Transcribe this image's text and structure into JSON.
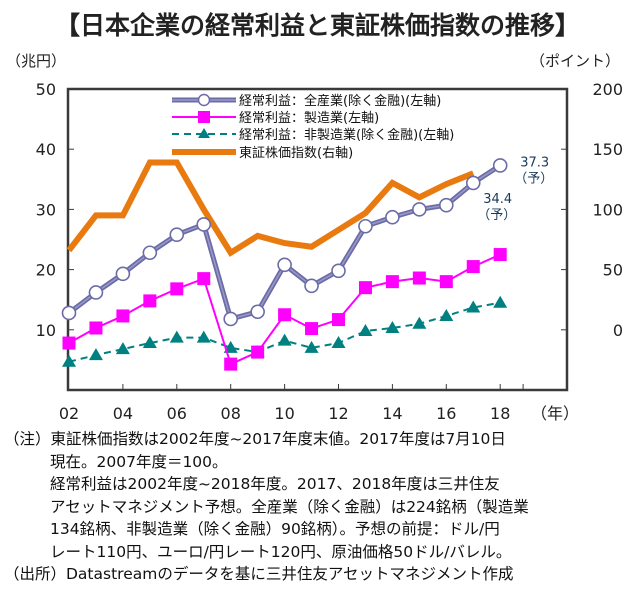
{
  "title": "【日本企業の経常利益と東証株価指数の推移】",
  "left_unit": "（兆円）",
  "right_unit": "（ポイント）",
  "x_unit": "（年）",
  "chart_data": {
    "type": "line",
    "title": "日本企業の経常利益と東証株価指数の推移",
    "xlabel": "（年）",
    "ylabel_left": "（兆円）",
    "ylabel_right": "（ポイント）",
    "x": [
      2002,
      2003,
      2004,
      2005,
      2006,
      2007,
      2008,
      2009,
      2010,
      2011,
      2012,
      2013,
      2014,
      2015,
      2016,
      2017,
      2018
    ],
    "x_tick_labels": [
      "02",
      "04",
      "06",
      "08",
      "10",
      "12",
      "14",
      "16",
      "18"
    ],
    "x_tick_years": [
      2002,
      2004,
      2006,
      2008,
      2010,
      2012,
      2014,
      2016,
      2018
    ],
    "ylim_left": [
      0,
      50
    ],
    "yticks_left": [
      10,
      20,
      30,
      40,
      50
    ],
    "ylim_right": [
      -50,
      200
    ],
    "yticks_right": [
      0,
      50,
      100,
      150,
      200
    ],
    "grid": false,
    "legend_position": "top-center",
    "series": [
      {
        "name": "経常利益：全産業(除く金融)(左軸)",
        "axis": "left",
        "color": "#6b6ba8",
        "marker": "circle-open",
        "style": "thick",
        "values": [
          12.8,
          16.2,
          19.3,
          22.8,
          25.8,
          27.5,
          11.8,
          13.0,
          20.8,
          17.3,
          19.8,
          27.2,
          28.7,
          30.0,
          30.7,
          34.4,
          37.3
        ]
      },
      {
        "name": "経常利益：製造業(左軸)",
        "axis": "left",
        "color": "#ff00ff",
        "marker": "square",
        "style": "solid",
        "values": [
          7.8,
          10.3,
          12.3,
          14.8,
          16.8,
          18.5,
          4.3,
          6.3,
          12.5,
          10.2,
          11.7,
          17.0,
          18.0,
          18.6,
          18.0,
          20.5,
          22.5
        ]
      },
      {
        "name": "経常利益：非製造業(除く金融)(左軸)",
        "axis": "left",
        "color": "#008080",
        "marker": "triangle",
        "style": "dashed",
        "values": [
          4.7,
          5.8,
          6.8,
          7.8,
          8.7,
          8.7,
          7.0,
          6.3,
          8.2,
          7.0,
          7.8,
          9.8,
          10.3,
          11.0,
          12.3,
          13.7,
          14.5
        ]
      },
      {
        "name": "東証株価指数(右軸)",
        "axis": "right",
        "color": "#e87a10",
        "marker": "none",
        "style": "thick",
        "values": [
          66,
          95,
          95,
          139,
          139,
          100,
          64,
          78,
          72,
          69,
          83,
          97,
          122,
          110,
          121,
          130,
          null
        ]
      }
    ],
    "annotations": [
      {
        "series": 0,
        "year": 2018,
        "value_text": "37.3",
        "sub_text": "（予）"
      },
      {
        "series": 0,
        "year": 2017,
        "value_text": "34.4",
        "sub_text": "（予）"
      }
    ]
  },
  "notes": {
    "lines": [
      "（注）東証株価指数は2002年度~2017年度末値。2017年度は7月10日",
      "現在。2007年度＝100。",
      "経常利益は2002年度~2018年度。2017、2018年度は三井住友",
      "アセットマネジメント予想。全産業（除く金融）は224銘柄（製造業",
      "134銘柄、非製造業（除く金融）90銘柄）。予想の前提：ドル/円",
      "レート110円、ユーロ/円レート120円、原油価格50ドル/バレル。",
      "（出所）Datastreamのデータを基に三井住友アセットマネジメント作成"
    ]
  }
}
